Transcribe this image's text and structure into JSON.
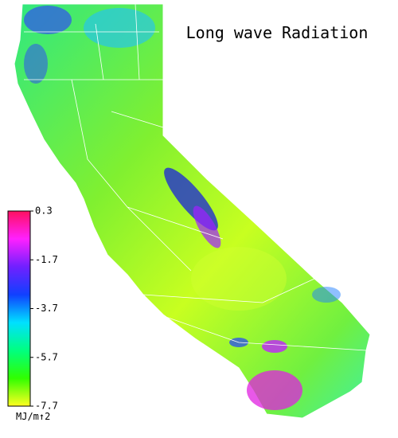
{
  "map": {
    "title": "Long wave Radiation",
    "colorbar": {
      "ticks": [
        0.3,
        -1.7,
        -3.7,
        -5.7,
        -7.7
      ],
      "unit": "MJ/m↑2",
      "colors": [
        "#ff1060",
        "#ff20ff",
        "#7020ff",
        "#1040ff",
        "#00e0ff",
        "#00ff80",
        "#30ff00",
        "#ffff20"
      ]
    }
  }
}
